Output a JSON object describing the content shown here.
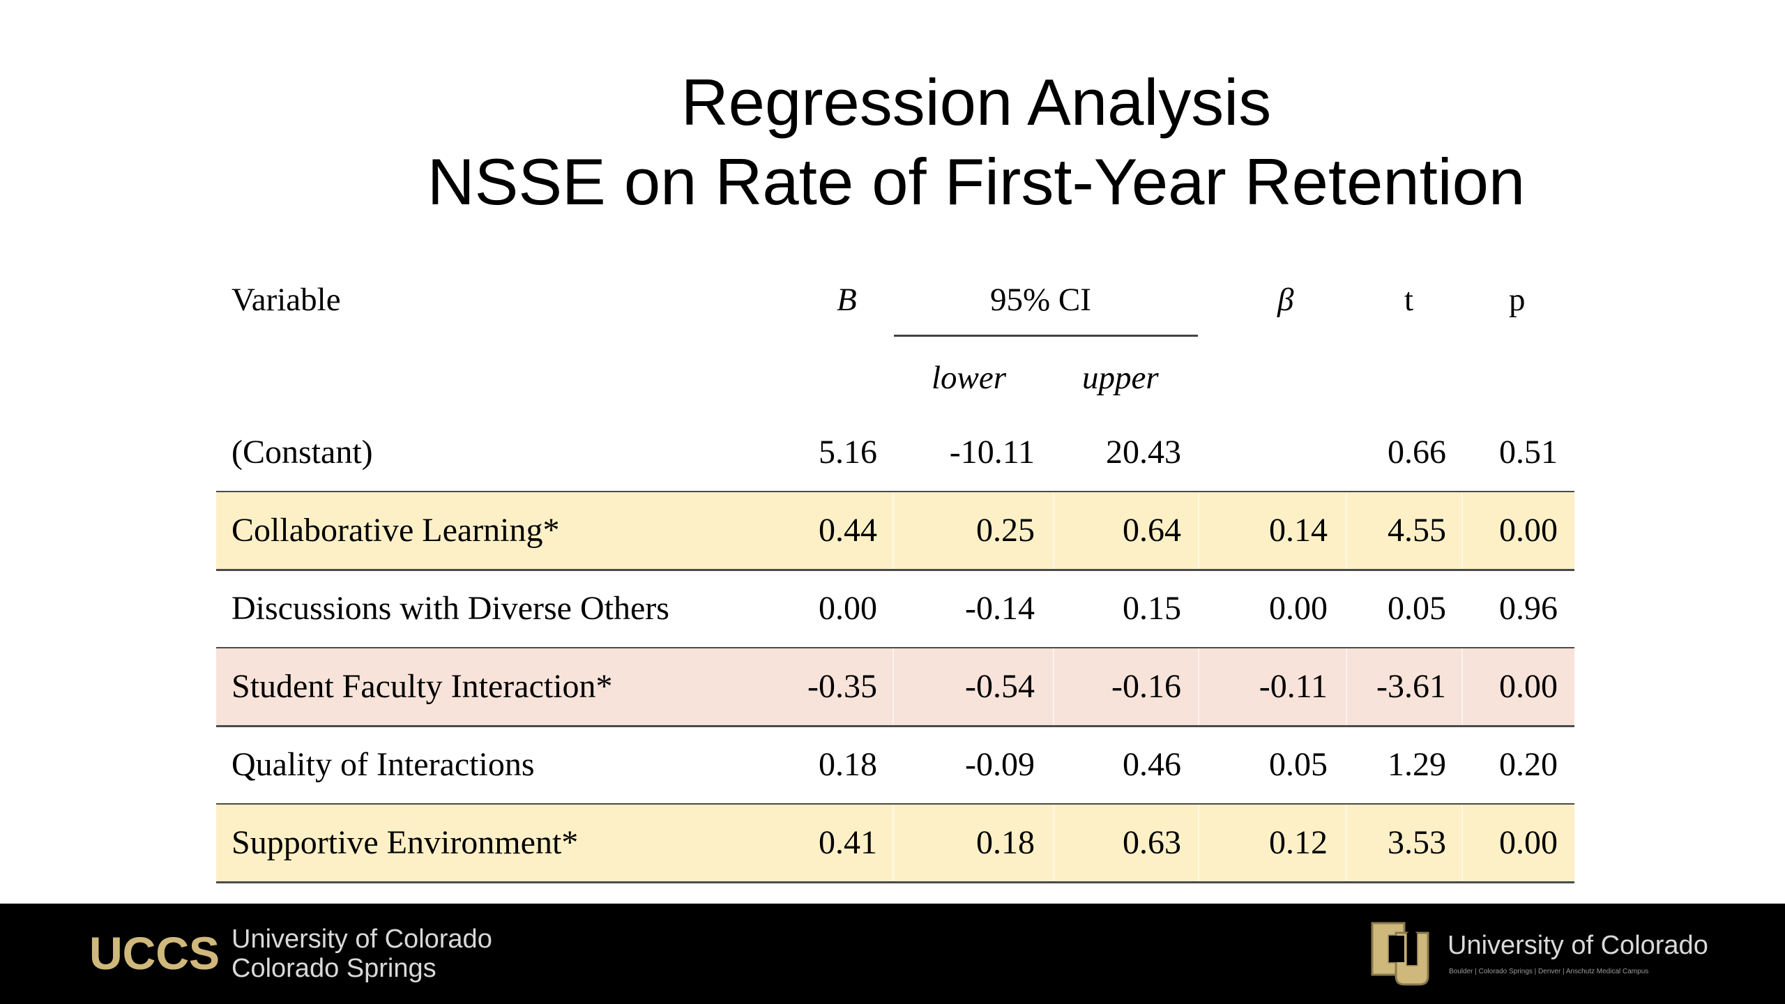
{
  "title": {
    "line1": "Regression Analysis",
    "line2": "NSSE on Rate of First-Year Retention"
  },
  "table": {
    "headers": {
      "variable": "Variable",
      "b": "B",
      "ci": "95% CI",
      "beta": "β",
      "t": "t",
      "p": "p",
      "lower": "lower",
      "upper": "upper"
    },
    "rows": [
      {
        "variable": "(Constant)",
        "b": "5.16",
        "lower": "-10.11",
        "upper": "20.43",
        "beta": "",
        "t": "0.66",
        "p": "0.51",
        "highlight": "none"
      },
      {
        "variable": "Collaborative Learning*",
        "b": "0.44",
        "lower": "0.25",
        "upper": "0.64",
        "beta": "0.14",
        "t": "4.55",
        "p": "0.00",
        "highlight": "yellow"
      },
      {
        "variable": "Discussions with Diverse Others",
        "b": "0.00",
        "lower": "-0.14",
        "upper": "0.15",
        "beta": "0.00",
        "t": "0.05",
        "p": "0.96",
        "highlight": "none"
      },
      {
        "variable": "Student Faculty Interaction*",
        "b": "-0.35",
        "lower": "-0.54",
        "upper": "-0.16",
        "beta": "-0.11",
        "t": "-3.61",
        "p": "0.00",
        "highlight": "pink"
      },
      {
        "variable": "Quality of Interactions",
        "b": "0.18",
        "lower": "-0.09",
        "upper": "0.46",
        "beta": "0.05",
        "t": "1.29",
        "p": "0.20",
        "highlight": "none"
      },
      {
        "variable": "Supportive Environment*",
        "b": "0.41",
        "lower": "0.18",
        "upper": "0.63",
        "beta": "0.12",
        "t": "3.53",
        "p": "0.00",
        "highlight": "yellow"
      }
    ]
  },
  "footer": {
    "uccs_logo": "UCCS",
    "uccs_line1": "University of Colorado",
    "uccs_line2": "Colorado Springs",
    "cu_name": "University of Colorado",
    "cu_campuses": "Boulder | Colorado Springs | Denver | Anschutz Medical Campus",
    "logo_icon": "cu-monogram-icon"
  },
  "colors": {
    "highlight_yellow": "#fdf0c7",
    "highlight_pink": "#f7e3d9",
    "footer_bg": "#000000",
    "logo_gold": "#cfb87c"
  }
}
